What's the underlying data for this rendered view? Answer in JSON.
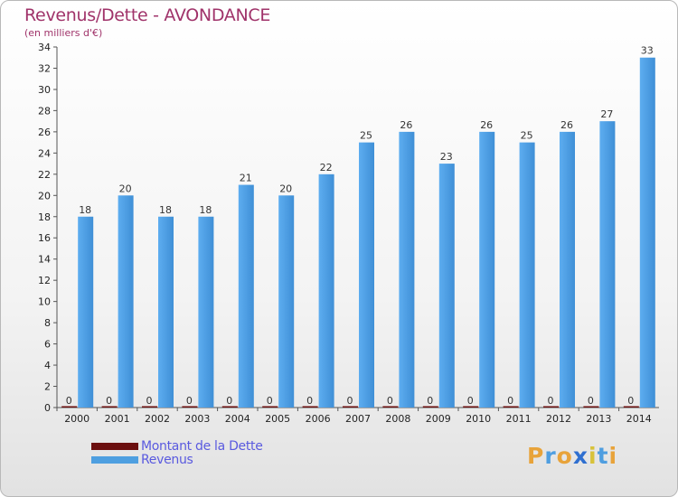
{
  "title": "Revenus/Dette - AVONDANCE",
  "subtitle": "(en milliers d'€)",
  "legend": [
    {
      "label": "Montant de la Dette",
      "color": "#6b0f0f"
    },
    {
      "label": "Revenus",
      "color": "#4e9fe0"
    }
  ],
  "logo": {
    "letters": [
      "P",
      "r",
      "o",
      "x",
      "i",
      "t",
      "i"
    ],
    "colors": [
      "#e8a33a",
      "#4f9ee0",
      "#e8a33a",
      "#2f6fd0",
      "#d8c23a",
      "#4f9ee0",
      "#e8a33a"
    ]
  },
  "chart_data": {
    "type": "bar",
    "title": "Revenus/Dette - AVONDANCE",
    "ylabel": "(en milliers d'€)",
    "xlabel": "",
    "ylim": [
      0,
      34
    ],
    "yticks": [
      0,
      2,
      4,
      6,
      8,
      10,
      12,
      14,
      16,
      18,
      20,
      22,
      24,
      26,
      28,
      30,
      32,
      34
    ],
    "categories": [
      "2000",
      "2001",
      "2002",
      "2003",
      "2004",
      "2005",
      "2006",
      "2007",
      "2008",
      "2009",
      "2010",
      "2011",
      "2012",
      "2013",
      "2014"
    ],
    "series": [
      {
        "name": "Montant de la Dette",
        "color": "#6b0f0f",
        "values": [
          0,
          0,
          0,
          0,
          0,
          0,
          0,
          0,
          0,
          0,
          0,
          0,
          0,
          0,
          0
        ]
      },
      {
        "name": "Revenus",
        "color": "#4e9fe0",
        "values": [
          18,
          20,
          18,
          18,
          21,
          20,
          22,
          25,
          26,
          23,
          26,
          25,
          26,
          27,
          33
        ]
      }
    ],
    "legend_position": "bottom-left",
    "grid": false
  }
}
